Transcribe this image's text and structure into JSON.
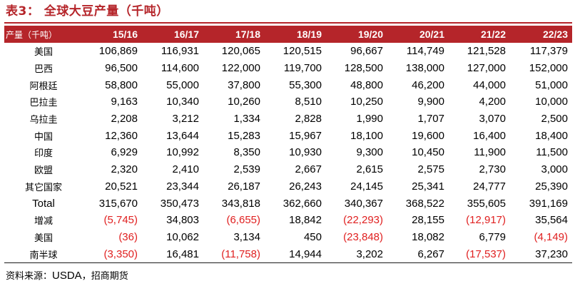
{
  "title": "表3：  全球大豆产量（千吨）",
  "table": {
    "corner_label": "产量（千吨）",
    "columns": [
      "15/16",
      "16/17",
      "17/18",
      "18/19",
      "19/20",
      "20/21",
      "21/22",
      "22/23"
    ],
    "rows": [
      {
        "label": "美国",
        "values": [
          "106,869",
          "116,931",
          "120,065",
          "120,515",
          "96,667",
          "114,749",
          "121,528",
          "117,379"
        ]
      },
      {
        "label": "巴西",
        "values": [
          "96,500",
          "114,600",
          "122,000",
          "119,700",
          "128,500",
          "138,000",
          "127,000",
          "152,000"
        ]
      },
      {
        "label": "阿根廷",
        "values": [
          "58,800",
          "55,000",
          "37,800",
          "55,300",
          "48,800",
          "46,200",
          "44,000",
          "51,000"
        ]
      },
      {
        "label": "巴拉圭",
        "values": [
          "9,163",
          "10,340",
          "10,260",
          "8,510",
          "10,250",
          "9,900",
          "4,200",
          "10,000"
        ]
      },
      {
        "label": "乌拉圭",
        "values": [
          "2,208",
          "3,212",
          "1,334",
          "2,828",
          "1,990",
          "1,707",
          "3,070",
          "2,500"
        ]
      },
      {
        "label": "中国",
        "values": [
          "12,360",
          "13,644",
          "15,283",
          "15,967",
          "18,100",
          "19,600",
          "16,400",
          "18,400"
        ]
      },
      {
        "label": "印度",
        "values": [
          "6,929",
          "10,992",
          "8,350",
          "10,930",
          "9,300",
          "10,450",
          "11,900",
          "11,500"
        ]
      },
      {
        "label": "欧盟",
        "values": [
          "2,320",
          "2,410",
          "2,539",
          "2,667",
          "2,615",
          "2,575",
          "2,730",
          "3,000"
        ]
      },
      {
        "label": "其它国家",
        "values": [
          "20,521",
          "23,344",
          "26,187",
          "26,243",
          "24,145",
          "25,341",
          "24,777",
          "25,390"
        ]
      },
      {
        "label": "Total",
        "values": [
          "315,670",
          "350,473",
          "343,818",
          "362,660",
          "340,367",
          "368,522",
          "355,605",
          "391,169"
        ]
      },
      {
        "label": "增减",
        "values": [
          "(5,745)",
          "34,803",
          "(6,655)",
          "18,842",
          "(22,293)",
          "28,155",
          "(12,917)",
          "35,564"
        ]
      },
      {
        "label": "美国",
        "values": [
          "(36)",
          "10,062",
          "3,134",
          "450",
          "(23,848)",
          "18,082",
          "6,779",
          "(4,149)"
        ]
      },
      {
        "label": "南半球",
        "values": [
          "(3,350)",
          "16,481",
          "(11,758)",
          "14,944",
          "3,202",
          "6,267",
          "(17,537)",
          "37,230"
        ]
      }
    ]
  },
  "source": {
    "prefix": "资料来源：",
    "name": "USDA",
    "suffix": "，招商期货"
  },
  "colors": {
    "header_bg": "#b5252a",
    "title": "#b5252a",
    "negative": "#e02020"
  }
}
